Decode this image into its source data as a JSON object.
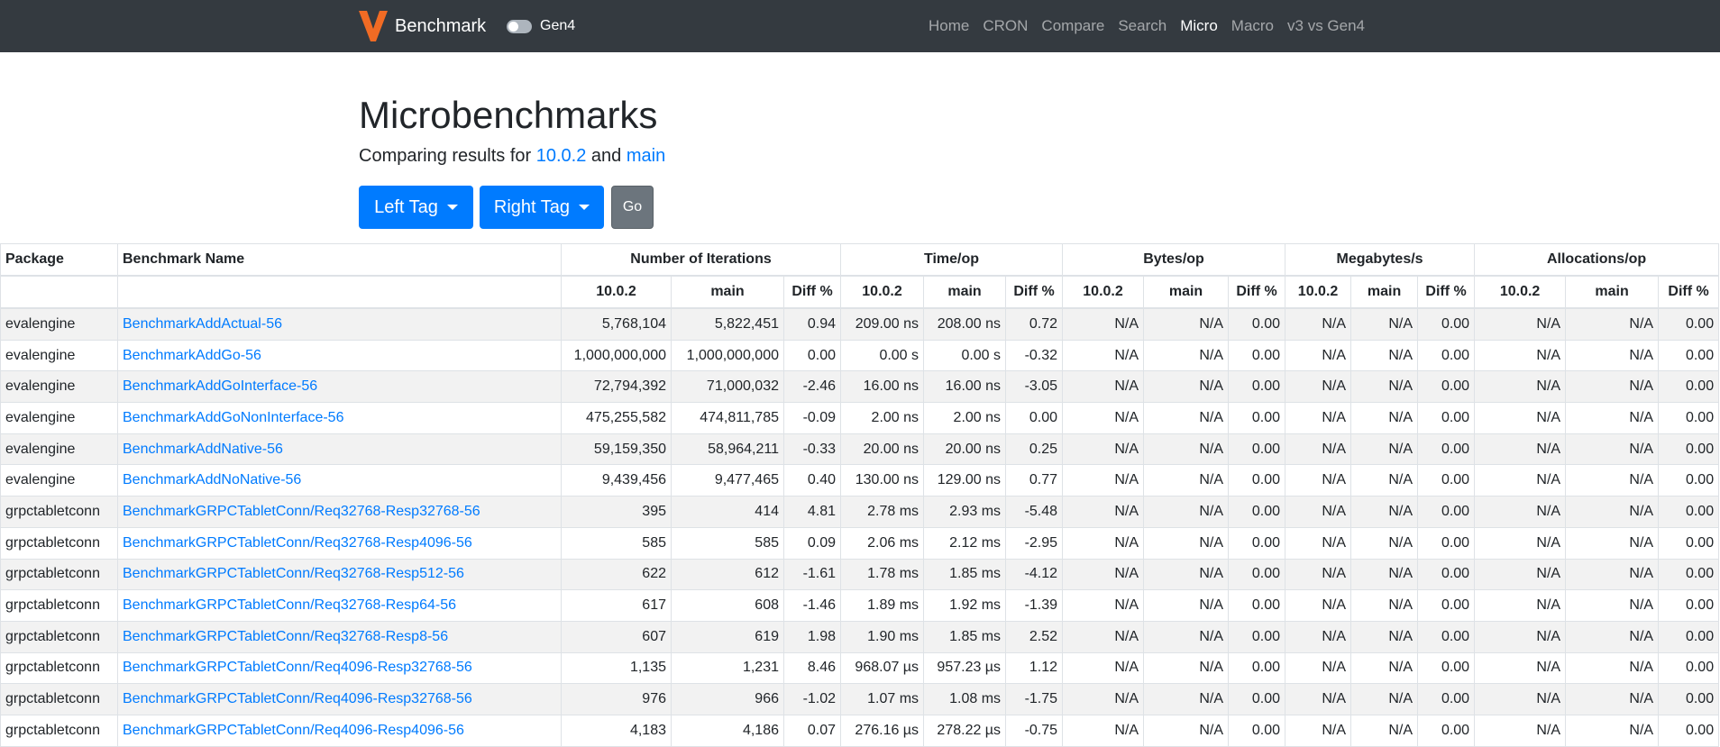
{
  "nav": {
    "brand": "Benchmark",
    "toggle_label": "Gen4",
    "links": [
      "Home",
      "CRON",
      "Compare",
      "Search",
      "Micro",
      "Macro",
      "v3 vs Gen4"
    ],
    "active": "Micro"
  },
  "page": {
    "title": "Microbenchmarks",
    "subtitle": {
      "prefix": "Comparing results for",
      "left": "10.0.2",
      "joiner": "and",
      "right": "main"
    },
    "buttons": {
      "left": "Left Tag",
      "right": "Right Tag",
      "go": "Go"
    }
  },
  "table": {
    "fixed_headers": [
      "Package",
      "Benchmark Name"
    ],
    "groups": [
      {
        "name": "Number of Iterations",
        "columns": [
          "10.0.2",
          "main",
          "Diff %"
        ]
      },
      {
        "name": "Time/op",
        "columns": [
          "10.0.2",
          "main",
          "Diff %"
        ]
      },
      {
        "name": "Bytes/op",
        "columns": [
          "10.0.2",
          "main",
          "Diff %"
        ]
      },
      {
        "name": "Megabytes/s",
        "columns": [
          "10.0.2",
          "main",
          "Diff %"
        ]
      },
      {
        "name": "Allocations/op",
        "columns": [
          "10.0.2",
          "main",
          "Diff %"
        ]
      }
    ],
    "rows": [
      [
        "evalengine",
        "BenchmarkAddActual-56",
        "5,768,104",
        "5,822,451",
        "0.94",
        "209.00 ns",
        "208.00 ns",
        "0.72",
        "N/A",
        "N/A",
        "0.00",
        "N/A",
        "N/A",
        "0.00",
        "N/A",
        "N/A",
        "0.00"
      ],
      [
        "evalengine",
        "BenchmarkAddGo-56",
        "1,000,000,000",
        "1,000,000,000",
        "0.00",
        "0.00 s",
        "0.00 s",
        "-0.32",
        "N/A",
        "N/A",
        "0.00",
        "N/A",
        "N/A",
        "0.00",
        "N/A",
        "N/A",
        "0.00"
      ],
      [
        "evalengine",
        "BenchmarkAddGoInterface-56",
        "72,794,392",
        "71,000,032",
        "-2.46",
        "16.00 ns",
        "16.00 ns",
        "-3.05",
        "N/A",
        "N/A",
        "0.00",
        "N/A",
        "N/A",
        "0.00",
        "N/A",
        "N/A",
        "0.00"
      ],
      [
        "evalengine",
        "BenchmarkAddGoNonInterface-56",
        "475,255,582",
        "474,811,785",
        "-0.09",
        "2.00 ns",
        "2.00 ns",
        "0.00",
        "N/A",
        "N/A",
        "0.00",
        "N/A",
        "N/A",
        "0.00",
        "N/A",
        "N/A",
        "0.00"
      ],
      [
        "evalengine",
        "BenchmarkAddNative-56",
        "59,159,350",
        "58,964,211",
        "-0.33",
        "20.00 ns",
        "20.00 ns",
        "0.25",
        "N/A",
        "N/A",
        "0.00",
        "N/A",
        "N/A",
        "0.00",
        "N/A",
        "N/A",
        "0.00"
      ],
      [
        "evalengine",
        "BenchmarkAddNoNative-56",
        "9,439,456",
        "9,477,465",
        "0.40",
        "130.00 ns",
        "129.00 ns",
        "0.77",
        "N/A",
        "N/A",
        "0.00",
        "N/A",
        "N/A",
        "0.00",
        "N/A",
        "N/A",
        "0.00"
      ],
      [
        "grpctabletconn",
        "BenchmarkGRPCTabletConn/Req32768-Resp32768-56",
        "395",
        "414",
        "4.81",
        "2.78 ms",
        "2.93 ms",
        "-5.48",
        "N/A",
        "N/A",
        "0.00",
        "N/A",
        "N/A",
        "0.00",
        "N/A",
        "N/A",
        "0.00"
      ],
      [
        "grpctabletconn",
        "BenchmarkGRPCTabletConn/Req32768-Resp4096-56",
        "585",
        "585",
        "0.09",
        "2.06 ms",
        "2.12 ms",
        "-2.95",
        "N/A",
        "N/A",
        "0.00",
        "N/A",
        "N/A",
        "0.00",
        "N/A",
        "N/A",
        "0.00"
      ],
      [
        "grpctabletconn",
        "BenchmarkGRPCTabletConn/Req32768-Resp512-56",
        "622",
        "612",
        "-1.61",
        "1.78 ms",
        "1.85 ms",
        "-4.12",
        "N/A",
        "N/A",
        "0.00",
        "N/A",
        "N/A",
        "0.00",
        "N/A",
        "N/A",
        "0.00"
      ],
      [
        "grpctabletconn",
        "BenchmarkGRPCTabletConn/Req32768-Resp64-56",
        "617",
        "608",
        "-1.46",
        "1.89 ms",
        "1.92 ms",
        "-1.39",
        "N/A",
        "N/A",
        "0.00",
        "N/A",
        "N/A",
        "0.00",
        "N/A",
        "N/A",
        "0.00"
      ],
      [
        "grpctabletconn",
        "BenchmarkGRPCTabletConn/Req32768-Resp8-56",
        "607",
        "619",
        "1.98",
        "1.90 ms",
        "1.85 ms",
        "2.52",
        "N/A",
        "N/A",
        "0.00",
        "N/A",
        "N/A",
        "0.00",
        "N/A",
        "N/A",
        "0.00"
      ],
      [
        "grpctabletconn",
        "BenchmarkGRPCTabletConn/Req4096-Resp32768-56",
        "1,135",
        "1,231",
        "8.46",
        "968.07 µs",
        "957.23 µs",
        "1.12",
        "N/A",
        "N/A",
        "0.00",
        "N/A",
        "N/A",
        "0.00",
        "N/A",
        "N/A",
        "0.00"
      ],
      [
        "grpctabletconn",
        "BenchmarkGRPCTabletConn/Req4096-Resp32768-56",
        "976",
        "966",
        "-1.02",
        "1.07 ms",
        "1.08 ms",
        "-1.75",
        "N/A",
        "N/A",
        "0.00",
        "N/A",
        "N/A",
        "0.00",
        "N/A",
        "N/A",
        "0.00"
      ],
      [
        "grpctabletconn",
        "BenchmarkGRPCTabletConn/Req4096-Resp4096-56",
        "4,183",
        "4,186",
        "0.07",
        "276.16 µs",
        "278.22 µs",
        "-0.75",
        "N/A",
        "N/A",
        "0.00",
        "N/A",
        "N/A",
        "0.00",
        "N/A",
        "N/A",
        "0.00"
      ]
    ]
  }
}
